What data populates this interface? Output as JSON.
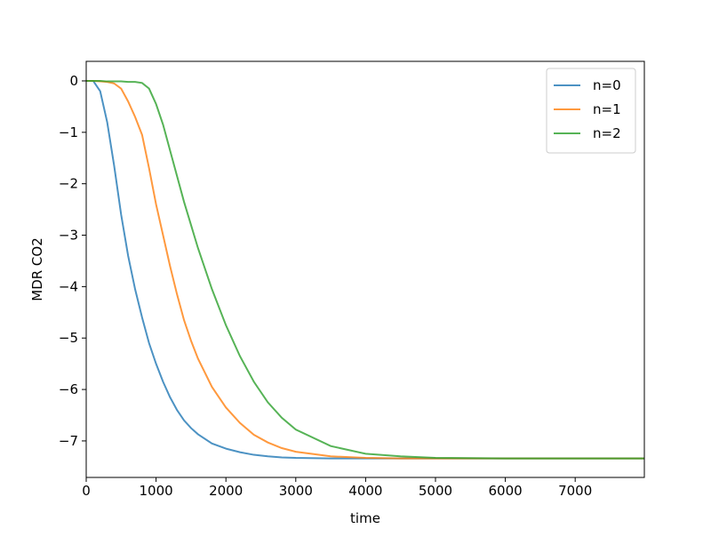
{
  "chart_data": {
    "type": "line",
    "xlabel": "time",
    "ylabel": "MDR CO2",
    "x": [
      0,
      100,
      200,
      300,
      400,
      500,
      600,
      700,
      800,
      900,
      1000,
      1100,
      1200,
      1300,
      1400,
      1500,
      1600,
      1800,
      2000,
      2200,
      2400,
      2600,
      2800,
      3000,
      3500,
      4000,
      4500,
      5000,
      6000,
      7000,
      8000
    ],
    "series": [
      {
        "name": "n=0",
        "color": "#1f77b4",
        "values": [
          0,
          0,
          -0.2,
          -0.8,
          -1.65,
          -2.6,
          -3.4,
          -4.05,
          -4.6,
          -5.1,
          -5.5,
          -5.85,
          -6.15,
          -6.4,
          -6.6,
          -6.75,
          -6.87,
          -7.05,
          -7.15,
          -7.22,
          -7.27,
          -7.3,
          -7.32,
          -7.33,
          -7.34,
          -7.34,
          -7.34,
          -7.34,
          -7.34,
          -7.34,
          -7.34
        ]
      },
      {
        "name": "n=1",
        "color": "#ff7f0e",
        "values": [
          0,
          0,
          -0.01,
          -0.02,
          -0.05,
          -0.15,
          -0.4,
          -0.7,
          -1.05,
          -1.7,
          -2.4,
          -3.0,
          -3.6,
          -4.15,
          -4.65,
          -5.05,
          -5.4,
          -5.95,
          -6.35,
          -6.65,
          -6.88,
          -7.03,
          -7.14,
          -7.21,
          -7.3,
          -7.33,
          -7.34,
          -7.34,
          -7.34,
          -7.34,
          -7.34
        ]
      },
      {
        "name": "n=2",
        "color": "#2ca02c",
        "values": [
          0,
          0,
          0,
          -0.01,
          -0.01,
          -0.01,
          -0.02,
          -0.02,
          -0.04,
          -0.15,
          -0.45,
          -0.85,
          -1.35,
          -1.85,
          -2.35,
          -2.8,
          -3.25,
          -4.05,
          -4.75,
          -5.35,
          -5.85,
          -6.25,
          -6.55,
          -6.78,
          -7.1,
          -7.25,
          -7.3,
          -7.33,
          -7.34,
          -7.34,
          -7.34
        ]
      }
    ],
    "xlim": [
      0,
      7990
    ],
    "ylim": [
      -7.71,
      0.38
    ],
    "xticks": [
      0,
      1000,
      2000,
      3000,
      4000,
      5000,
      6000,
      7000
    ],
    "yticks": [
      {
        "value": -7,
        "label": "−7"
      },
      {
        "value": -6,
        "label": "−6"
      },
      {
        "value": -5,
        "label": "−5"
      },
      {
        "value": -4,
        "label": "−4"
      },
      {
        "value": -3,
        "label": "−3"
      },
      {
        "value": -2,
        "label": "−2"
      },
      {
        "value": -1,
        "label": "−1"
      },
      0
    ],
    "legend": "upper right"
  }
}
